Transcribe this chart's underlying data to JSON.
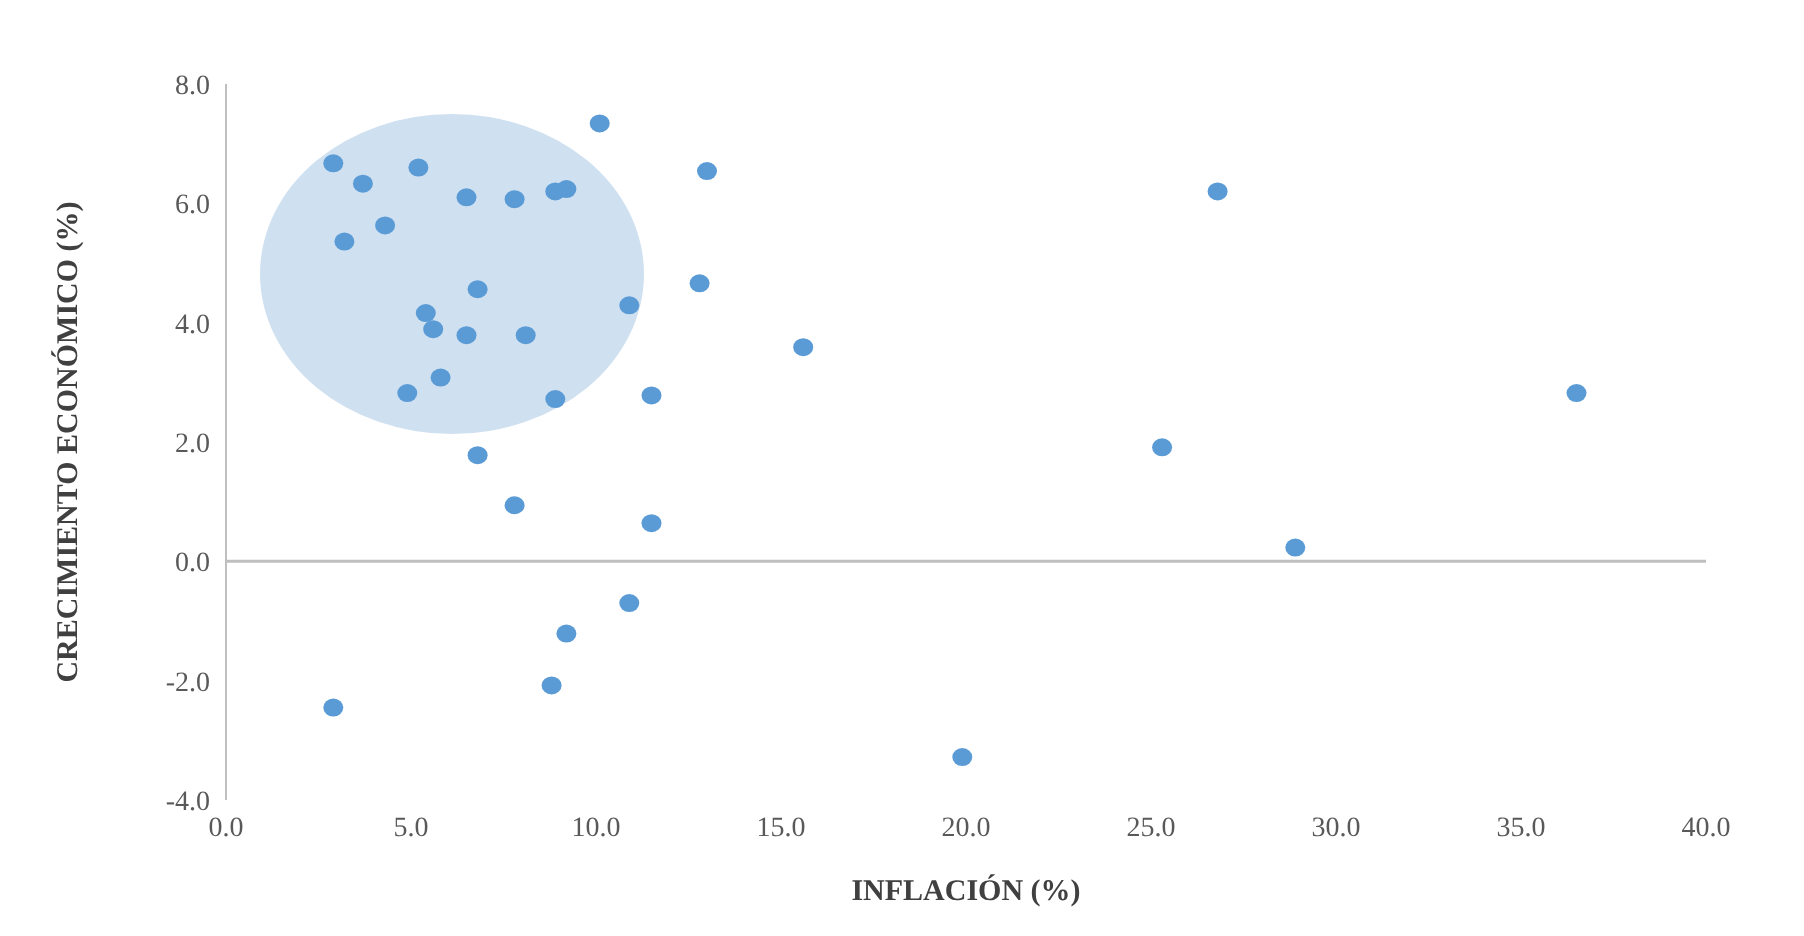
{
  "chart_data": {
    "type": "scatter",
    "xlabel": "INFLACIÓN (%)",
    "ylabel": "CRECIMIENTO ECONÓMICO (%)",
    "x": [
      2.9,
      3.7,
      5.2,
      3.2,
      4.3,
      6.5,
      7.8,
      8.9,
      9.2,
      10.1,
      13.0,
      6.8,
      5.4,
      5.6,
      6.5,
      8.1,
      10.9,
      12.8,
      5.8,
      4.9,
      8.9,
      11.5,
      6.8,
      15.6,
      7.8,
      11.5,
      10.9,
      9.2,
      8.8,
      2.9,
      25.3,
      26.8,
      28.9,
      19.9,
      36.5
    ],
    "series": [
      {
        "color": "#5b9bd5",
        "values": [
          6.67,
          6.33,
          6.6,
          5.36,
          5.63,
          6.1,
          6.07,
          6.2,
          6.24,
          7.34,
          6.54,
          4.56,
          4.16,
          3.89,
          3.79,
          3.79,
          4.29,
          4.66,
          3.08,
          2.82,
          2.72,
          2.78,
          1.78,
          3.59,
          0.94,
          0.64,
          -0.7,
          -1.21,
          -2.08,
          -2.45,
          1.91,
          6.2,
          0.23,
          -3.28,
          2.82
        ]
      }
    ],
    "xlim": [
      0,
      40
    ],
    "xticks": [
      {
        "value": 0,
        "label": "0.0"
      },
      {
        "value": 5,
        "label": "5.0"
      },
      {
        "value": 10,
        "label": "10.0"
      },
      {
        "value": 15,
        "label": "15.0"
      },
      {
        "value": 20,
        "label": "20.0"
      },
      {
        "value": 25,
        "label": "25.0"
      },
      {
        "value": 30,
        "label": "30.0"
      },
      {
        "value": 35,
        "label": "35.0"
      },
      {
        "value": 40,
        "label": "40.0"
      }
    ],
    "ylim": [
      -4,
      8
    ],
    "yticks": [
      {
        "value": -4,
        "label": "-4.0"
      },
      {
        "value": -2,
        "label": "-2.0"
      },
      {
        "value": 0,
        "label": "0.0"
      },
      {
        "value": 2,
        "label": "2.0"
      },
      {
        "value": 4,
        "label": "4.0"
      },
      {
        "value": 6,
        "label": "6.0"
      },
      {
        "value": 8,
        "label": "8.0"
      }
    ],
    "ref_lines": [
      {
        "axis": "y",
        "value": 0,
        "color": "#bfbfbf"
      }
    ],
    "marker": "circle",
    "grid": false,
    "legend": false
  }
}
